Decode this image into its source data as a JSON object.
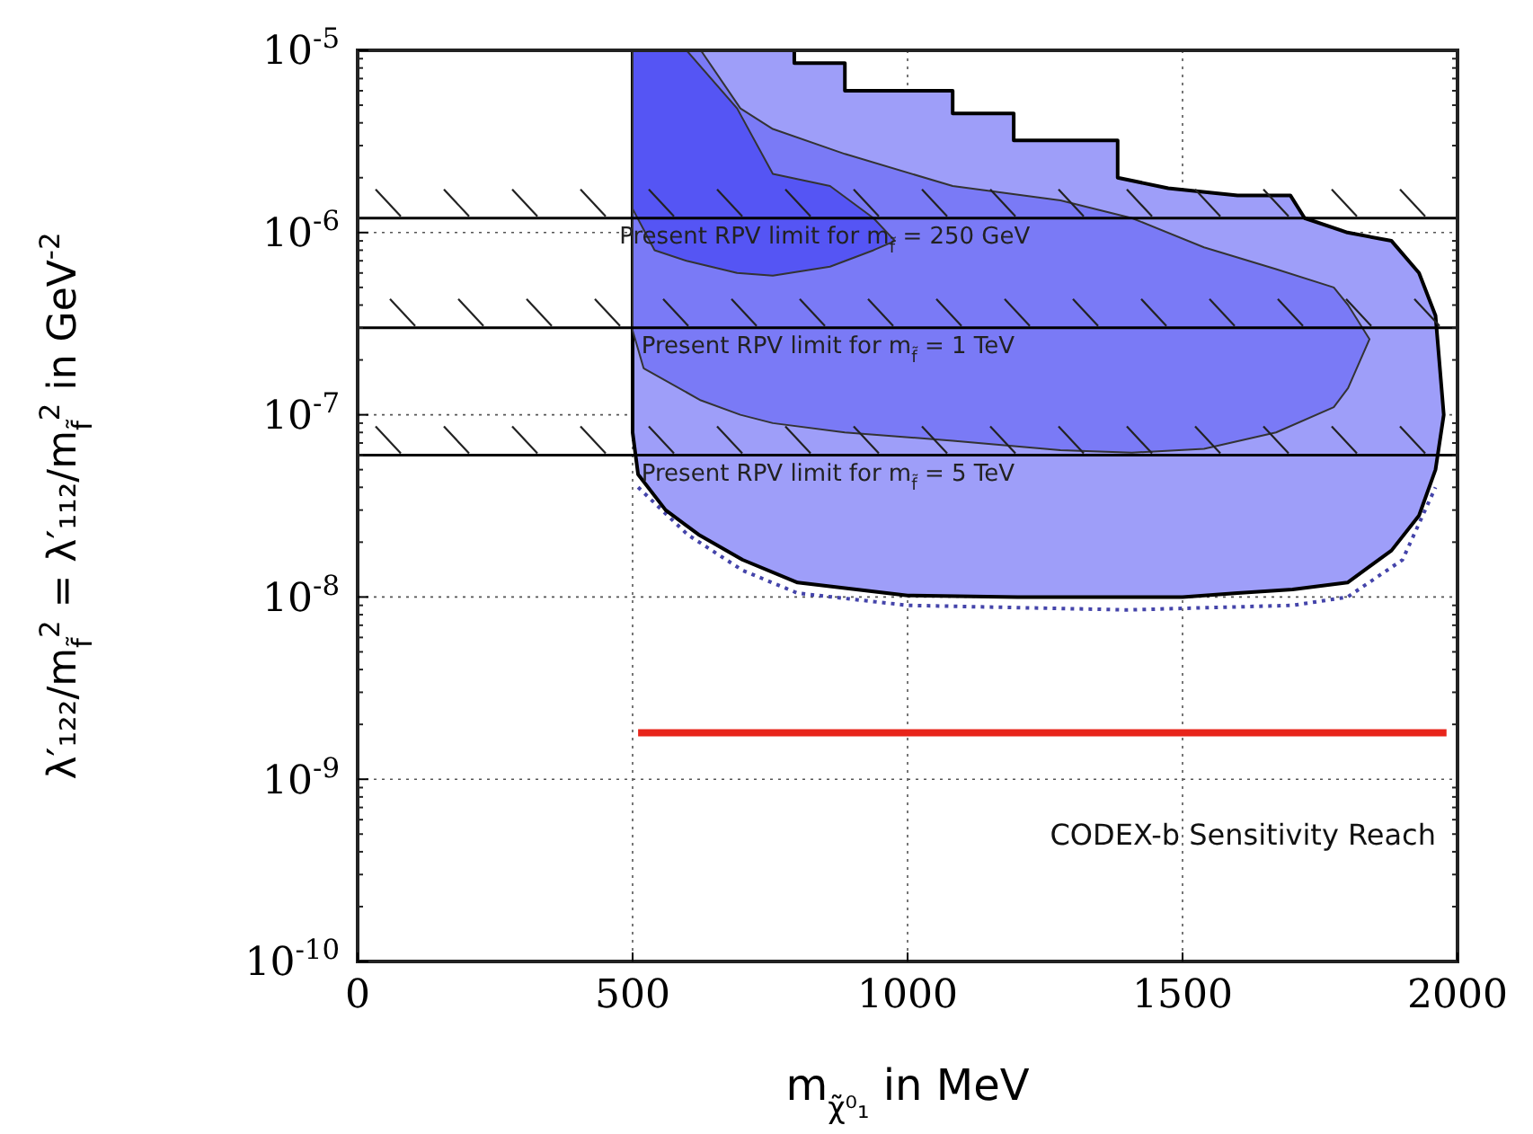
{
  "chart_data": {
    "type": "area",
    "xlabel": "m$_{χ̃⁰₁}$ in MeV",
    "ylabel": "λ′₁₂₂/m$_{f̃}$$^{2}$ = λ′₁₁₂/m$_{f̃}$$^{2}$ in GeV$^{-2}$",
    "xlim": [
      0,
      2000
    ],
    "xticks": [
      0,
      500,
      1000,
      1500,
      2000
    ],
    "ylim": [
      1e-10,
      1e-05
    ],
    "yticks": [
      {
        "value": 1e-10,
        "label": "10$^{-10}$"
      },
      {
        "value": 1e-09,
        "label": "10$^{-9}$"
      },
      {
        "value": 1e-08,
        "label": "10$^{-8}$"
      },
      {
        "value": 1e-07,
        "label": "10$^{-7}$"
      },
      {
        "value": 1e-06,
        "label": "10$^{-6}$"
      },
      {
        "value": 1e-05,
        "label": "10$^{-5}$"
      }
    ],
    "log": "y",
    "grid": true,
    "series": [
      {
        "type": "line",
        "color": "#4444aa",
        "line_style": "dotted",
        "x": [
          510,
          600,
          700,
          800,
          1000,
          1400,
          1700,
          1800,
          1900,
          1960
        ],
        "values": [
          4e-08,
          2.2e-08,
          1.4e-08,
          1.05e-08,
          9e-09,
          8.5e-09,
          9e-09,
          1e-08,
          1.6e-08,
          4e-08
        ]
      },
      {
        "color": "#9e9ef9",
        "x": [
          500,
          510,
          560,
          620,
          700,
          794,
          794,
          886,
          886,
          1082,
          1082,
          1193,
          1193,
          1382,
          1382,
          1474,
          1600,
          1696,
          1722,
          1800,
          1880,
          1930,
          1960,
          1975,
          1960,
          1930,
          1880,
          1800,
          1700,
          1600,
          1500,
          1400,
          1200,
          1000,
          800,
          700,
          620,
          560,
          510,
          500
        ],
        "values": [
          1e-05,
          1e-05,
          1e-05,
          1e-05,
          1e-05,
          1e-05,
          8.5e-06,
          8.5e-06,
          6e-06,
          6e-06,
          4.5e-06,
          4.5e-06,
          3.2e-06,
          3.2e-06,
          2e-06,
          1.75e-06,
          1.6e-06,
          1.6e-06,
          1.2e-06,
          1e-06,
          9e-07,
          6e-07,
          3.5e-07,
          1e-07,
          5e-08,
          2.8e-08,
          1.8e-08,
          1.2e-08,
          1.1e-08,
          1.05e-08,
          1e-08,
          1e-08,
          1e-08,
          1.02e-08,
          1.2e-08,
          1.6e-08,
          2.2e-08,
          3e-08,
          4.7e-08,
          8e-08
        ]
      },
      {
        "color": "#7a7af6",
        "x": [
          500,
          520,
          624,
          696,
          755,
          886,
          1082,
          1278,
          1408,
          1539,
          1670,
          1775,
          1801,
          1840,
          1801,
          1775,
          1670,
          1539,
          1408,
          1278,
          1082,
          886,
          755,
          696,
          624,
          520,
          500
        ],
        "values": [
          1e-05,
          1e-05,
          1e-05,
          4.8e-06,
          3.7e-06,
          2.7e-06,
          1.8e-06,
          1.5e-06,
          1.2e-06,
          8.3e-07,
          6.3e-07,
          5e-07,
          4e-07,
          2.6e-07,
          1.4e-07,
          1.1e-07,
          8e-08,
          6.5e-08,
          6.2e-08,
          6.4e-08,
          7.2e-08,
          8e-08,
          9e-08,
          1e-07,
          1.2e-07,
          1.8e-07,
          2.9e-07
        ]
      },
      {
        "color": "#5555f4",
        "x": [
          500,
          540,
          598,
          690,
          755,
          859,
          938,
          977,
          938,
          859,
          755,
          690,
          598,
          540,
          500
        ],
        "values": [
          1e-05,
          1e-05,
          1e-05,
          4.8e-06,
          2.1e-06,
          1.8e-06,
          1.2e-06,
          9e-07,
          8e-07,
          6.5e-07,
          5.8e-07,
          6e-07,
          7e-07,
          8e-07,
          1.35e-06
        ]
      },
      {
        "type": "line",
        "color": "#e8251b",
        "x": [
          510,
          1980
        ],
        "values": [
          1.8e-09,
          1.8e-09
        ]
      }
    ],
    "ref_lines": [
      {
        "axis": "y",
        "value": 1.2e-06,
        "color": "#000000"
      },
      {
        "axis": "y",
        "value": 3e-07,
        "color": "#000000"
      },
      {
        "axis": "y",
        "value": 6e-08,
        "color": "#000000"
      }
    ],
    "annotations": [
      "Present RPV limit for m$_{f̃}$ = 250 GeV",
      "Present RPV limit for m$_{f̃}$ = 1 TeV",
      "Present RPV limit for m$_{f̃}$ = 5 TeV",
      "CODEX-b Sensitivity Reach"
    ]
  }
}
